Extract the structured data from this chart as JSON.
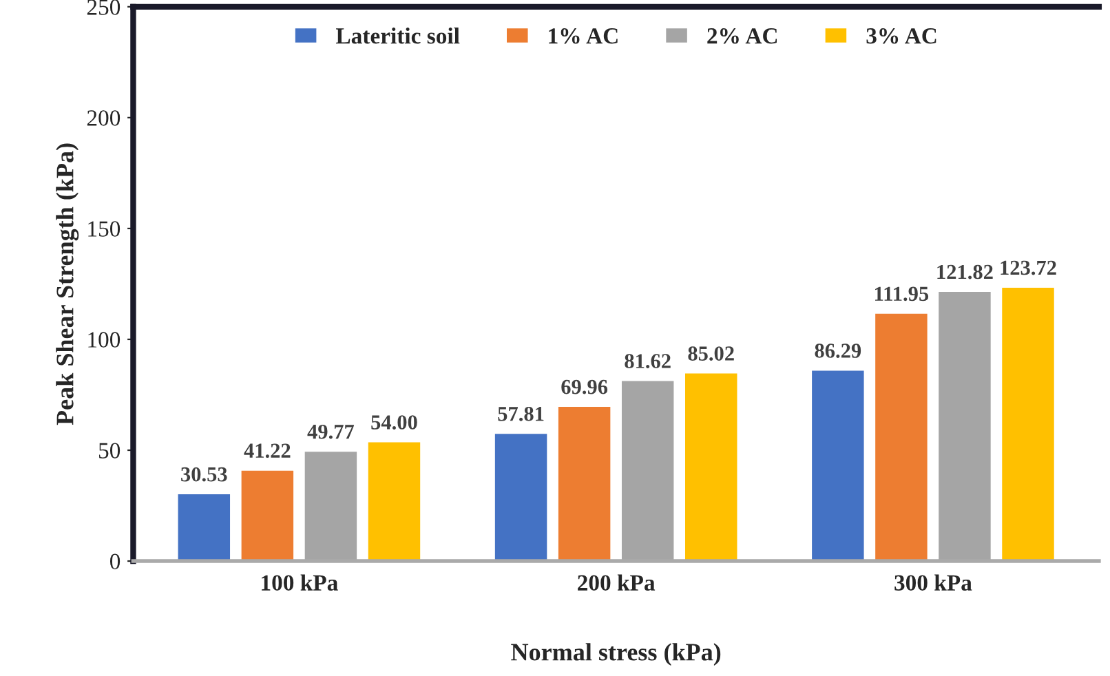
{
  "chart_data": {
    "type": "bar",
    "xlabel": "Normal stress (kPa)",
    "ylabel": "Peak Shear Strength (kPa)",
    "categories": [
      "100 kPa",
      "200 kPa",
      "300 kPa"
    ],
    "series": [
      {
        "name": "Lateritic soil",
        "color": "#4472c4",
        "values": [
          30.53,
          57.81,
          86.29
        ],
        "value_labels": [
          "30.53",
          "57.81",
          "86.29"
        ]
      },
      {
        "name": "1% AC",
        "color": "#ed7d31",
        "values": [
          41.22,
          69.96,
          111.95
        ],
        "value_labels": [
          "41.22",
          "69.96",
          "111.95"
        ]
      },
      {
        "name": "2% AC",
        "color": "#a5a5a5",
        "values": [
          49.77,
          81.62,
          121.82
        ],
        "value_labels": [
          "49.77",
          "81.62",
          "121.82"
        ]
      },
      {
        "name": "3% AC",
        "color": "#ffc000",
        "values": [
          54.0,
          85.02,
          123.72
        ],
        "value_labels": [
          "54.00",
          "85.02",
          "123.72"
        ]
      }
    ],
    "ylim": [
      0,
      250
    ],
    "yticks": [
      0,
      50,
      100,
      150,
      200,
      250
    ],
    "grid": false,
    "legend": "top"
  }
}
